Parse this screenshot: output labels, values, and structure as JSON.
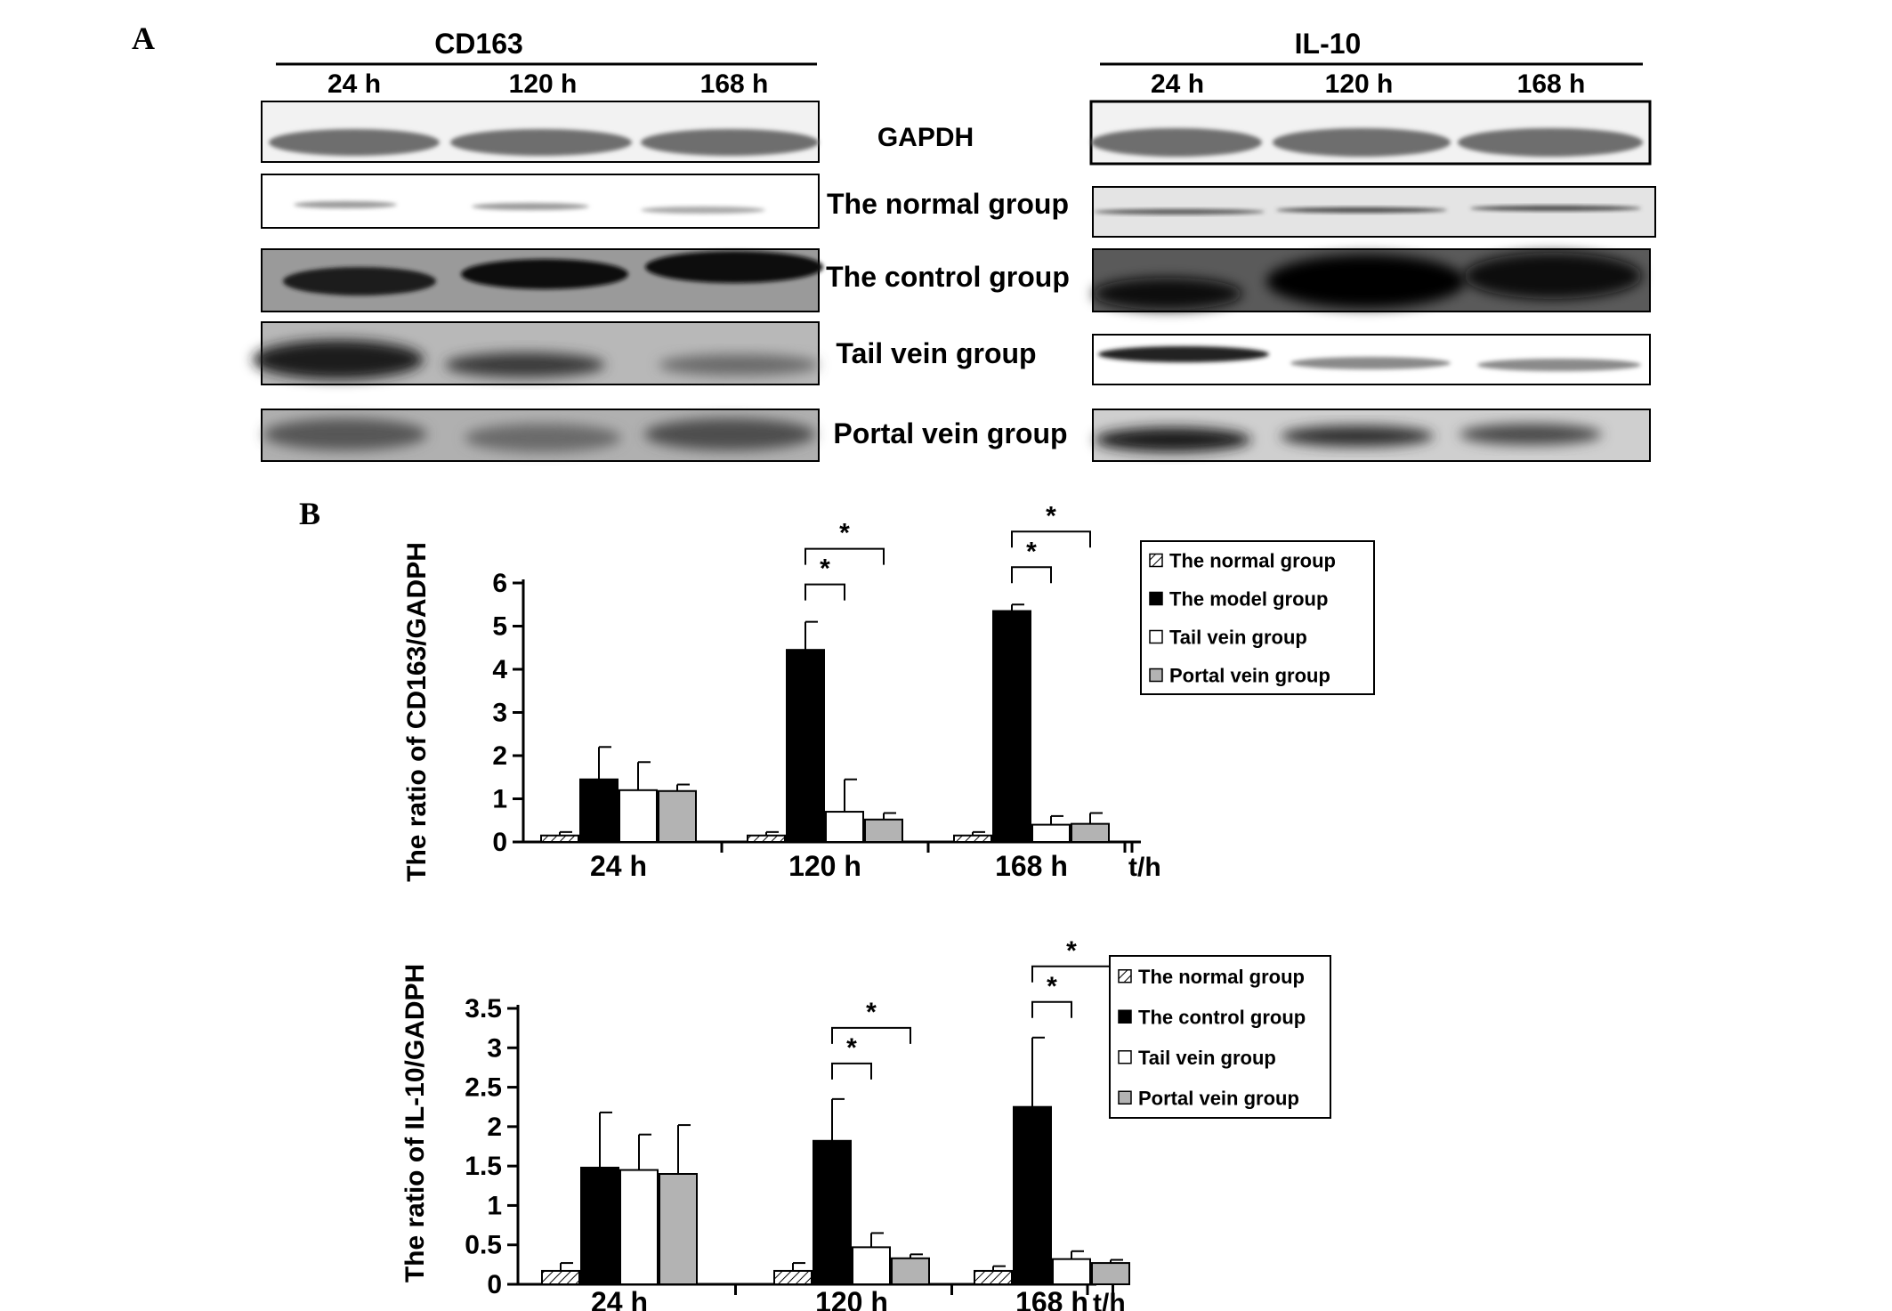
{
  "panel_a": {
    "letter": "A",
    "blots": [
      {
        "protein": "CD163",
        "time_labels": [
          "24 h",
          "120 h",
          "168 h"
        ]
      },
      {
        "protein": "IL-10",
        "time_labels": [
          "24 h",
          "120 h",
          "168 h"
        ]
      }
    ],
    "row_labels": [
      "GAPDH",
      "The normal group",
      "The control group",
      "Tail vein group",
      "Portal vein group"
    ]
  },
  "panel_b": {
    "letter": "B"
  },
  "colors": {
    "normal": "hatched",
    "model": "#000000",
    "tail": "#ffffff",
    "portal": "#b3b3b3"
  },
  "chart_data": [
    {
      "type": "bar",
      "ylabel": "The ratio of CD163/GADPH",
      "xunit": "t/h",
      "categories": [
        "24 h",
        "120 h",
        "168 h"
      ],
      "ylim": [
        0,
        6
      ],
      "yticks": [
        "0",
        "1",
        "2",
        "3",
        "4",
        "5",
        "6"
      ],
      "legend": {
        "placement": "top-right",
        "entries": [
          "The normal group",
          "The model group",
          "Tail vein group",
          "Portal vein group"
        ]
      },
      "series": [
        {
          "name": "The normal group",
          "values": [
            0.15,
            0.15,
            0.15
          ],
          "errors": [
            0.08,
            0.08,
            0.08
          ]
        },
        {
          "name": "The model group",
          "values": [
            1.45,
            4.45,
            5.35
          ],
          "errors": [
            0.75,
            0.65,
            0.15
          ]
        },
        {
          "name": "Tail vein group",
          "values": [
            1.2,
            0.7,
            0.4
          ],
          "errors": [
            0.65,
            0.75,
            0.2
          ]
        },
        {
          "name": "Portal vein group",
          "values": [
            1.18,
            0.52,
            0.42
          ],
          "errors": [
            0.15,
            0.15,
            0.25
          ]
        }
      ],
      "significance": [
        {
          "category": "120 h",
          "pairs": [
            [
              "The model group",
              "Tail vein group"
            ],
            [
              "The model group",
              "Portal vein group"
            ]
          ],
          "marker": "*"
        },
        {
          "category": "168 h",
          "pairs": [
            [
              "The model group",
              "Tail vein group"
            ],
            [
              "The model group",
              "Portal vein group"
            ]
          ],
          "marker": "*"
        }
      ]
    },
    {
      "type": "bar",
      "ylabel": "The ratio of IL-10/GADPH",
      "xunit": "t/h",
      "categories": [
        "24 h",
        "120 h",
        "168 h"
      ],
      "ylim": [
        0,
        3.5
      ],
      "yticks": [
        "0",
        "0.5",
        "1",
        "1.5",
        "2",
        "2.5",
        "3",
        "3.5"
      ],
      "legend": {
        "placement": "top-right",
        "entries": [
          "The normal group",
          "The control  group",
          "Tail vein group",
          "Portal vein group"
        ]
      },
      "series": [
        {
          "name": "The normal group",
          "values": [
            0.17,
            0.17,
            0.17
          ],
          "errors": [
            0.1,
            0.1,
            0.06
          ]
        },
        {
          "name": "The control  group",
          "values": [
            1.48,
            1.82,
            2.25
          ],
          "errors": [
            0.7,
            0.53,
            0.88
          ]
        },
        {
          "name": "Tail vein group",
          "values": [
            1.45,
            0.47,
            0.32
          ],
          "errors": [
            0.45,
            0.18,
            0.1
          ]
        },
        {
          "name": "Portal vein group",
          "values": [
            1.4,
            0.33,
            0.27
          ],
          "errors": [
            0.62,
            0.05,
            0.04
          ]
        }
      ],
      "significance": [
        {
          "category": "120 h",
          "pairs": [
            [
              "The control  group",
              "Tail vein group"
            ],
            [
              "The control  group",
              "Portal vein group"
            ]
          ],
          "marker": "*"
        },
        {
          "category": "168 h",
          "pairs": [
            [
              "The control  group",
              "Tail vein group"
            ],
            [
              "The control  group",
              "Portal vein group"
            ]
          ],
          "marker": "*"
        }
      ]
    }
  ]
}
